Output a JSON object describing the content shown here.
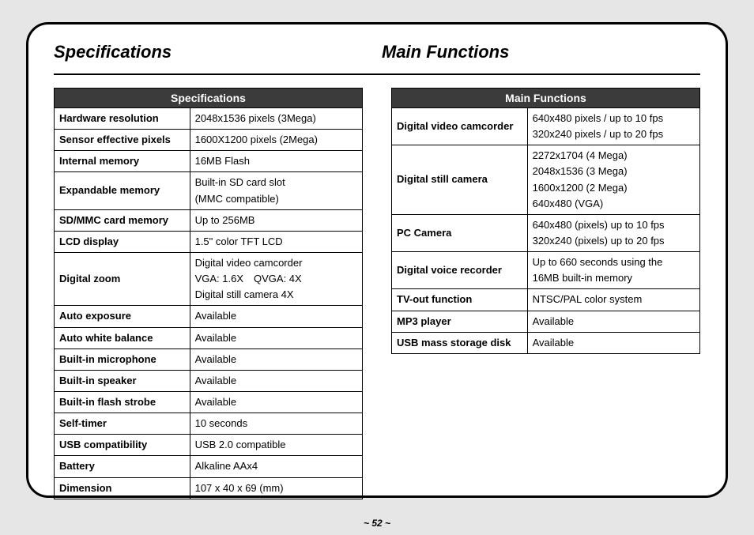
{
  "page": {
    "frame_border_color": "#000000",
    "frame_bg": "#ffffff",
    "page_bg": "#e6e6e6",
    "page_number": "~ 52 ~"
  },
  "headings": {
    "left": "Specifications",
    "right": "Main Functions"
  },
  "spec_table": {
    "title": "Specifications",
    "header_bg": "#3b3b3b",
    "header_fg": "#ffffff",
    "border_color": "#000000",
    "font_size": 13,
    "rows": [
      {
        "label": "Hardware resolution",
        "value": "2048x1536 pixels (3Mega)"
      },
      {
        "label": "Sensor effective pixels",
        "value": "1600X1200 pixels (2Mega)"
      },
      {
        "label": "Internal memory",
        "value": "16MB Flash"
      },
      {
        "label": "Expandable memory",
        "value": "Built-in SD card slot\n(MMC compatible)"
      },
      {
        "label": "SD/MMC card memory",
        "value": "Up to 256MB"
      },
      {
        "label": "LCD display",
        "value": "1.5\" color TFT LCD"
      },
      {
        "label": "Digital zoom",
        "value": "Digital video camcorder\nVGA: 1.6X QVGA: 4X\nDigital still camera 4X"
      },
      {
        "label": "Auto exposure",
        "value": "Available"
      },
      {
        "label": "Auto white balance",
        "value": "Available"
      },
      {
        "label": "Built-in microphone",
        "value": "Available"
      },
      {
        "label": "Built-in speaker",
        "value": "Available"
      },
      {
        "label": "Built-in flash strobe",
        "value": "Available"
      },
      {
        "label": "Self-timer",
        "value": "10 seconds"
      },
      {
        "label": "USB compatibility",
        "value": "USB 2.0 compatible"
      },
      {
        "label": "Battery",
        "value": "Alkaline AAx4"
      },
      {
        "label": "Dimension",
        "value": "107 x 40 x 69 (mm)"
      }
    ]
  },
  "func_table": {
    "title": "Main Functions",
    "header_bg": "#3b3b3b",
    "header_fg": "#ffffff",
    "border_color": "#000000",
    "font_size": 13,
    "rows": [
      {
        "label": "Digital video camcorder",
        "value": "640x480 pixels / up to 10 fps\n320x240 pixels / up to 20 fps"
      },
      {
        "label": "Digital still camera",
        "value": "2272x1704 (4 Mega)\n2048x1536 (3 Mega)\n1600x1200 (2 Mega)\n640x480 (VGA)"
      },
      {
        "label": "PC Camera",
        "value": "640x480 (pixels) up to 10 fps\n320x240 (pixels) up to 20 fps"
      },
      {
        "label": "Digital voice recorder",
        "value": "Up to 660 seconds using the\n16MB built-in memory"
      },
      {
        "label": "TV-out function",
        "value": "NTSC/PAL color system"
      },
      {
        "label": "MP3 player",
        "value": "Available"
      },
      {
        "label": "USB mass storage disk",
        "value": "Available"
      }
    ]
  }
}
